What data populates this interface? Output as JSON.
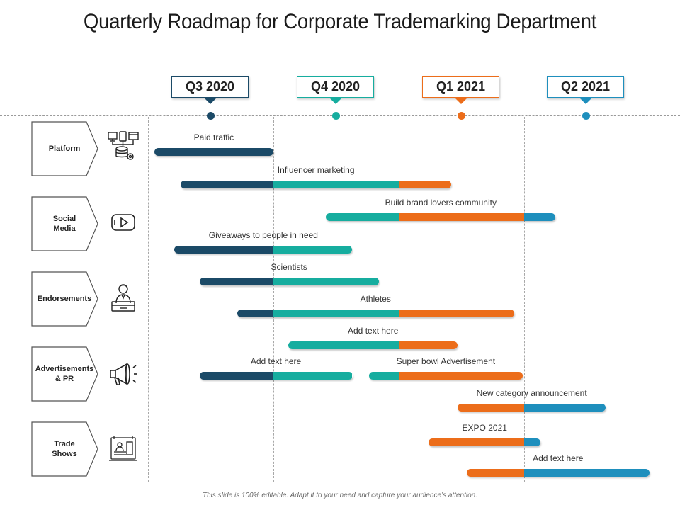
{
  "title": "Quarterly Roadmap for Corporate Trademarking Department",
  "colors": {
    "navy": "#1b4a67",
    "teal": "#16ad9f",
    "orange": "#ec6d1a",
    "blue": "#1e8fbd"
  },
  "quarters": [
    {
      "label": "Q3 2020",
      "color": "#1b4a67"
    },
    {
      "label": "Q4 2020",
      "color": "#16ad9f"
    },
    {
      "label": "Q1 2021",
      "color": "#ec6d1a"
    },
    {
      "label": "Q2 2021",
      "color": "#1e8fbd"
    }
  ],
  "categories": [
    {
      "label": "Platform",
      "icon": "devices-database-icon"
    },
    {
      "label": "Social\nMedia",
      "icon": "video-play-icon"
    },
    {
      "label": "Endorsements",
      "icon": "person-at-podium-icon"
    },
    {
      "label": "Advertisements\n& PR",
      "icon": "megaphone-icon"
    },
    {
      "label": "Trade\nShows",
      "icon": "exhibition-booth-icon"
    }
  ],
  "tasks": [
    {
      "label": "Paid traffic",
      "start": 0.05,
      "end": 1.0
    },
    {
      "label": "Influencer marketing",
      "start": 0.26,
      "end": 2.42
    },
    {
      "label": "Build brand lovers community",
      "start": 1.42,
      "end": 3.25
    },
    {
      "label": "Giveaways to people in need",
      "start": 0.21,
      "end": 1.63
    },
    {
      "label": "Scientists",
      "start": 0.41,
      "end": 1.84
    },
    {
      "label": "Athletes",
      "start": 0.71,
      "end": 2.92
    },
    {
      "label": "Add text here",
      "start": 1.12,
      "end": 2.47
    },
    {
      "label": "Add text here",
      "start": 0.41,
      "end": 1.63
    },
    {
      "label": "Super bowl Advertisement",
      "start": 1.76,
      "end": 2.99
    },
    {
      "label": "New category announcement",
      "start": 2.47,
      "end": 3.65
    },
    {
      "label": "EXPO 2021",
      "start": 2.24,
      "end": 3.13
    },
    {
      "label": "Add text here",
      "start": 2.54,
      "end": 4.0
    }
  ],
  "footer": "This slide is 100% editable. Adapt it to your need and capture your audience’s attention."
}
